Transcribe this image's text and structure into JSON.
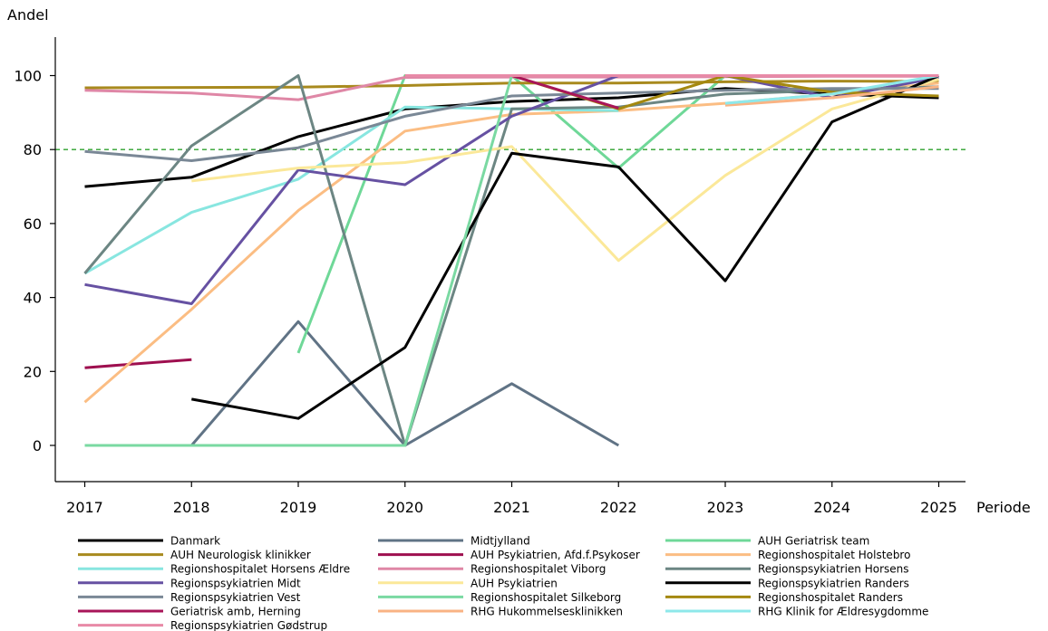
{
  "chart_data": {
    "type": "line",
    "title": "",
    "ylabel": "Andel",
    "xlabel": "Periode",
    "x": [
      2017,
      2018,
      2019,
      2020,
      2021,
      2022,
      2023,
      2024,
      2025
    ],
    "xlim": [
      2016.7,
      2025.25
    ],
    "ylim": [
      -10,
      110
    ],
    "yticks": [
      0,
      20,
      40,
      60,
      80,
      100
    ],
    "reference_line": {
      "y": 80,
      "color": "#2ca02c",
      "style": "dashed"
    },
    "grid": false,
    "legend_position": "bottom",
    "series": [
      {
        "name": "Danmark",
        "color": "#000000",
        "values": [
          70,
          72.5,
          83.5,
          91,
          93,
          94,
          96.5,
          95,
          94
        ]
      },
      {
        "name": "Midtjylland",
        "color": "#607385",
        "values": [
          null,
          0,
          33.5,
          0,
          16.7,
          0,
          null,
          null,
          null
        ]
      },
      {
        "name": "AUH Geriatrisk team",
        "color": "#6fd898",
        "values": [
          null,
          null,
          25,
          100,
          100,
          75,
          100,
          100,
          100
        ]
      },
      {
        "name": "AUH Neurologisk klinikker",
        "color": "#a88a1e",
        "values": [
          96.7,
          96.8,
          96.9,
          97.3,
          98,
          98,
          98.3,
          98.5,
          98.4
        ]
      },
      {
        "name": "AUH Psykiatrien, Afd.f.Psykoser",
        "color": "#9e0f4f",
        "values": [
          21,
          23.2,
          null,
          null,
          null,
          null,
          null,
          null,
          null
        ]
      },
      {
        "name": "Regionshospitalet Holstebro",
        "color": "#fbbd83",
        "values": [
          11.7,
          36.8,
          63.5,
          85,
          89.5,
          90.5,
          92.5,
          95,
          98
        ]
      },
      {
        "name": "Regionshospitalet Horsens Ældre",
        "color": "#88e6e0",
        "values": [
          46.5,
          63,
          72,
          91.5,
          91,
          90.5,
          null,
          null,
          null
        ]
      },
      {
        "name": "Regionshospitalet Viborg",
        "color": "#df87a6",
        "values": [
          96,
          95.3,
          93.5,
          99.5,
          99.6,
          99.6,
          99.7,
          99.8,
          99.8
        ]
      },
      {
        "name": "Regionspsykiatrien Horsens",
        "color": "#6c8683",
        "values": [
          46.5,
          81,
          100,
          0,
          91,
          91.5,
          95,
          96,
          97
        ]
      },
      {
        "name": "Regionspsykiatrien Midt",
        "color": "#6651a2",
        "values": [
          43.5,
          38.3,
          74.5,
          70.5,
          89,
          100,
          100,
          94,
          99.5
        ]
      },
      {
        "name": "AUH Psykiatrien",
        "color": "#fbe899",
        "values": [
          null,
          71.5,
          75,
          76.5,
          80.8,
          50,
          73,
          91,
          99
        ]
      },
      {
        "name": "Regionspsykiatrien Randers",
        "color": "#000000",
        "values": [
          null,
          12.5,
          7.3,
          26.5,
          79,
          75.3,
          44.5,
          87.5,
          100
        ]
      },
      {
        "name": "Regionspsykiatrien Vest",
        "color": "#7a8896",
        "values": [
          79.5,
          77,
          80.5,
          89,
          94.5,
          95.3,
          96,
          96.5,
          96.5
        ]
      },
      {
        "name": "Regionshospitalet Silkeborg",
        "color": "#7ad9a2",
        "values": [
          0,
          0,
          0,
          0,
          100,
          100,
          100,
          100,
          100
        ]
      },
      {
        "name": "Regionshospitalet Randers",
        "color": "#a4880f",
        "values": [
          null,
          null,
          null,
          100,
          100,
          91,
          100,
          95.5,
          94.5
        ]
      },
      {
        "name": "Geriatrisk amb, Herning",
        "color": "#a81559",
        "values": [
          null,
          null,
          null,
          null,
          100,
          91.2,
          null,
          null,
          null
        ]
      },
      {
        "name": "RHG Hukommelsesklinikken",
        "color": "#f9b384",
        "values": [
          null,
          null,
          null,
          null,
          null,
          null,
          92,
          94,
          97
        ]
      },
      {
        "name": "RHG Klinik for Ældresygdomme",
        "color": "#8ee8ea",
        "values": [
          null,
          null,
          null,
          null,
          null,
          null,
          92.5,
          95,
          100
        ]
      },
      {
        "name": "Regionspsykiatrien Gødstrup",
        "color": "#e88aa7",
        "values": [
          null,
          null,
          null,
          100,
          100,
          100,
          100,
          100,
          100
        ]
      }
    ]
  }
}
